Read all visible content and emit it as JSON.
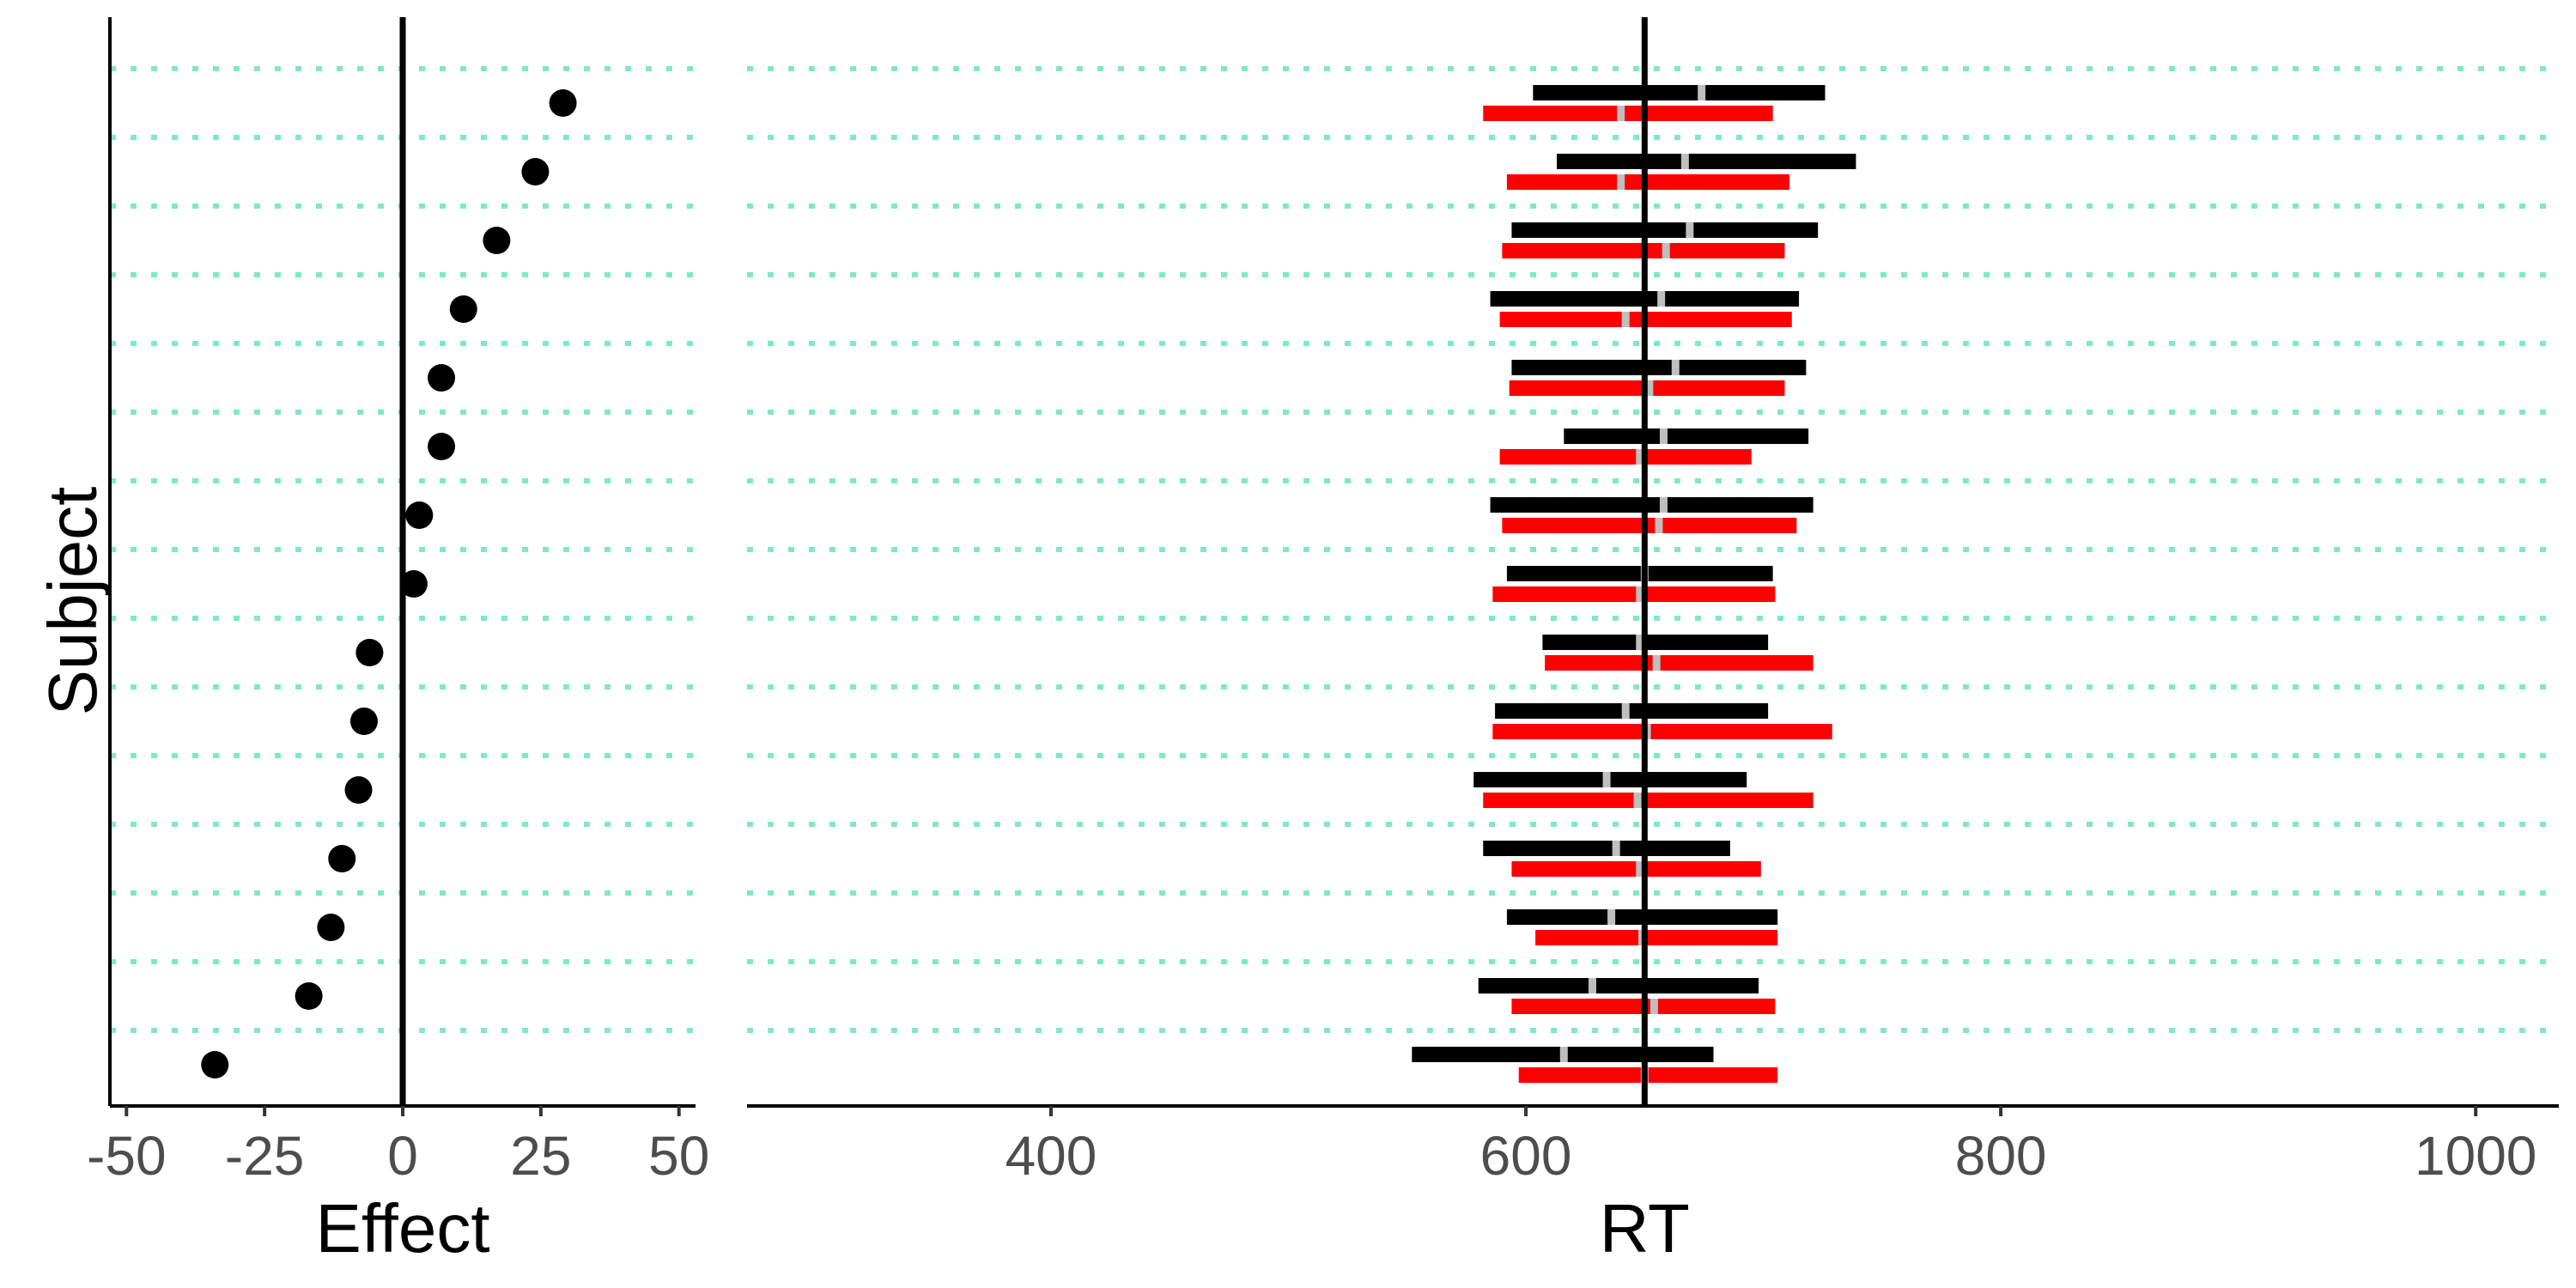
{
  "chart_data": [
    {
      "type": "scatter",
      "xlabel": "Effect",
      "ylabel": "Subject",
      "xlim": [
        -53,
        53
      ],
      "xticks": [
        -50,
        -25,
        0,
        25,
        50
      ],
      "xtick_labels": [
        "-50",
        "-25",
        "0",
        "25",
        "50"
      ],
      "reference_x": 0,
      "grid": "dotted horizontal",
      "subjects": 15,
      "values": [
        29,
        24,
        17,
        11,
        7,
        7,
        3,
        2,
        -6,
        -7,
        -8,
        -11,
        -13,
        -17,
        -34
      ]
    },
    {
      "type": "interval",
      "xlabel": "RT",
      "xlim": [
        272,
        1035
      ],
      "xticks": [
        400,
        600,
        800,
        1000
      ],
      "xtick_labels": [
        "400",
        "600",
        "800",
        "1000"
      ],
      "reference_x": 650,
      "grid": "dotted horizontal",
      "colors": {
        "condition_a": "#000000",
        "condition_b": "#ff0000",
        "mean_marker": "#bfbfbf",
        "grid": "#7fe8c8"
      },
      "series": [
        {
          "color": "#000000",
          "low": [
            603,
            613,
            594,
            585,
            594,
            616,
            585,
            592,
            607,
            587,
            578,
            582,
            592,
            580,
            552
          ],
          "mean": [
            674,
            667,
            669,
            657,
            663,
            658,
            658,
            650,
            648,
            642,
            634,
            638,
            636,
            628,
            616
          ],
          "high": [
            726,
            739,
            723,
            715,
            718,
            719,
            721,
            704,
            702,
            702,
            693,
            686,
            706,
            698,
            679
          ]
        },
        {
          "color": "#ff0000",
          "low": [
            582,
            592,
            590,
            589,
            593,
            589,
            590,
            586,
            608,
            586,
            582,
            594,
            604,
            594,
            597
          ],
          "mean": [
            640,
            640,
            659,
            642,
            652,
            648,
            656,
            648,
            655,
            651,
            647,
            648,
            649,
            654,
            650
          ],
          "high": [
            704,
            711,
            709,
            712,
            709,
            695,
            714,
            705,
            721,
            729,
            721,
            699,
            706,
            705,
            706
          ]
        }
      ]
    }
  ]
}
